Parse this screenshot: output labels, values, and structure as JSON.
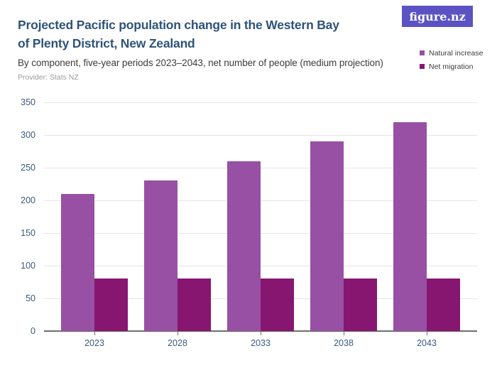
{
  "header": {
    "title_line1": "Projected Pacific population change in the Western Bay",
    "title_line2": "of Plenty District, New Zealand",
    "subtitle": "By component, five-year periods 2023–2043, net number of people (medium projection)",
    "provider": "Provider: Stats NZ",
    "logo_text": "figure.nz"
  },
  "colors": {
    "title": "#2e5379",
    "subtitle": "#3d3d3d",
    "provider": "#9b9b9b",
    "logo_bg": "#5b53c4",
    "logo_text": "#ffffff",
    "axis_label": "#3b5a80",
    "gridline": "#e4e4e4",
    "axis_line": "#6e6e6e",
    "natural_increase": "#9750a4",
    "net_migration": "#871670"
  },
  "chart_data": {
    "type": "bar",
    "title": "Projected Pacific population change in the Western Bay of Plenty District, New Zealand",
    "subtitle": "By component, five-year periods 2023–2043, net number of people (medium projection)",
    "provider": "Provider: Stats NZ",
    "categories": [
      "2023",
      "2028",
      "2033",
      "2038",
      "2043"
    ],
    "series": [
      {
        "name": "Natural increase",
        "color": "#9750a4",
        "values": [
          210,
          230,
          260,
          290,
          320
        ]
      },
      {
        "name": "Net migration",
        "color": "#871670",
        "values": [
          80,
          80,
          80,
          80,
          80
        ]
      }
    ],
    "xlabel": "",
    "ylabel": "",
    "ylim": [
      0,
      350
    ],
    "ytick_step": 50,
    "grid": true,
    "legend_position": "top-right"
  }
}
